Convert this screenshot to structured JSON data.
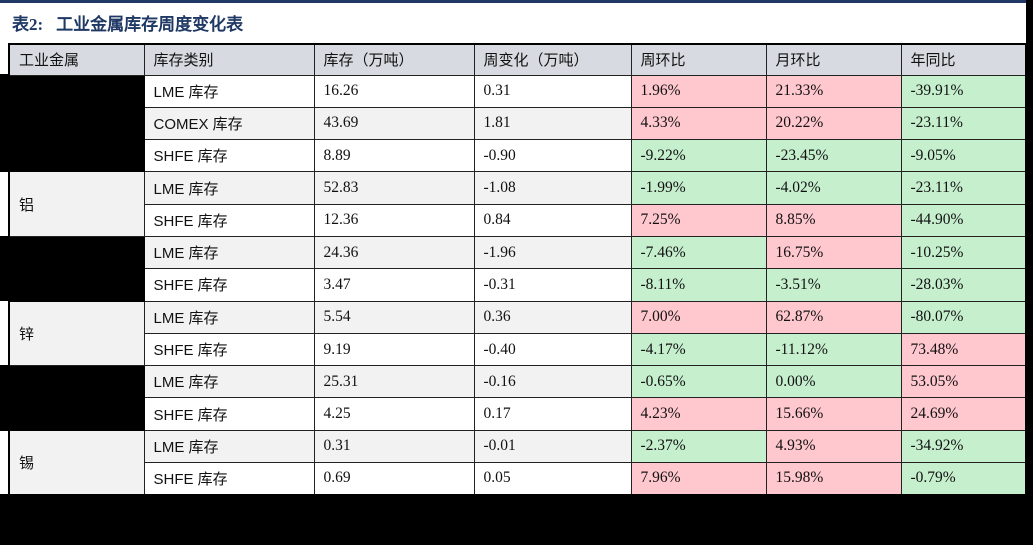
{
  "title": {
    "prefix": "表2:",
    "text": "工业金属库存周度变化表"
  },
  "table": {
    "columns": [
      "工业金属",
      "库存类别",
      "库存（万吨）",
      "周变化（万吨）",
      "周环比",
      "月环比",
      "年同比"
    ],
    "rows": [
      {
        "metal": {
          "label": "",
          "redacted": true,
          "span": 3
        },
        "category": "LME 库存",
        "inventory": "16.26",
        "week_change": "0.31",
        "wow": "1.96%",
        "mom": "21.33%",
        "yoy": "-39.91%"
      },
      {
        "category": "COMEX 库存",
        "inventory": "43.69",
        "week_change": "1.81",
        "wow": "4.33%",
        "mom": "20.22%",
        "yoy": "-23.11%"
      },
      {
        "category": "SHFE 库存",
        "inventory": "8.89",
        "week_change": "-0.90",
        "wow": "-9.22%",
        "mom": "-23.45%",
        "yoy": "-9.05%"
      },
      {
        "metal": {
          "label": "铝",
          "redacted": false,
          "span": 2
        },
        "category": "LME 库存",
        "inventory": "52.83",
        "week_change": "-1.08",
        "wow": "-1.99%",
        "mom": "-4.02%",
        "yoy": "-23.11%"
      },
      {
        "category": "SHFE 库存",
        "inventory": "12.36",
        "week_change": "0.84",
        "wow": "7.25%",
        "mom": "8.85%",
        "yoy": "-44.90%"
      },
      {
        "metal": {
          "label": "",
          "redacted": true,
          "span": 2
        },
        "category": "LME 库存",
        "inventory": "24.36",
        "week_change": "-1.96",
        "wow": "-7.46%",
        "mom": "16.75%",
        "yoy": "-10.25%"
      },
      {
        "category": "SHFE 库存",
        "inventory": "3.47",
        "week_change": "-0.31",
        "wow": "-8.11%",
        "mom": "-3.51%",
        "yoy": "-28.03%"
      },
      {
        "metal": {
          "label": "锌",
          "redacted": false,
          "span": 2
        },
        "category": "LME 库存",
        "inventory": "5.54",
        "week_change": "0.36",
        "wow": "7.00%",
        "mom": "62.87%",
        "yoy": "-80.07%"
      },
      {
        "category": "SHFE 库存",
        "inventory": "9.19",
        "week_change": "-0.40",
        "wow": "-4.17%",
        "mom": "-11.12%",
        "yoy": "73.48%"
      },
      {
        "metal": {
          "label": "",
          "redacted": true,
          "span": 2
        },
        "category": "LME 库存",
        "inventory": "25.31",
        "week_change": "-0.16",
        "wow": "-0.65%",
        "mom": "0.00%",
        "yoy": "53.05%"
      },
      {
        "category": "SHFE 库存",
        "inventory": "4.25",
        "week_change": "0.17",
        "wow": "4.23%",
        "mom": "15.66%",
        "yoy": "24.69%"
      },
      {
        "metal": {
          "label": "锡",
          "redacted": false,
          "span": 2
        },
        "category": "LME 库存",
        "inventory": "0.31",
        "week_change": "-0.01",
        "wow": "-2.37%",
        "mom": "4.93%",
        "yoy": "-34.92%"
      },
      {
        "category": "SHFE 库存",
        "inventory": "0.69",
        "week_change": "0.05",
        "wow": "7.96%",
        "mom": "15.98%",
        "yoy": "-0.79%"
      }
    ]
  },
  "colors": {
    "accent_navy": "#1f3864",
    "header_bg": "#d7dae0",
    "zebra_bg": "#f2f2f2",
    "positive_bg": "#ffc7ce",
    "negative_bg": "#c6efce",
    "redaction": "#000000"
  }
}
